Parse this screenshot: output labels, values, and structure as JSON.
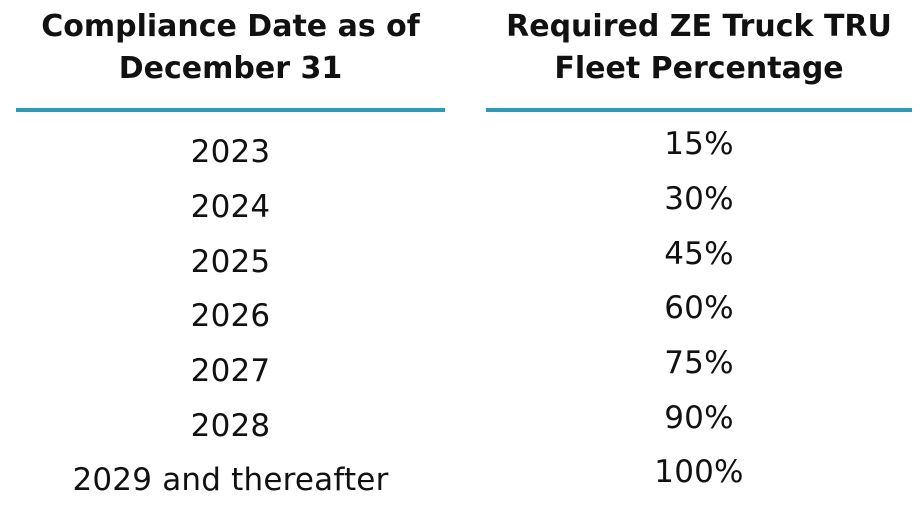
{
  "table": {
    "headers": [
      "Compliance Date as of December 31",
      "Required ZE Truck TRU Fleet Percentage"
    ],
    "rule_color": "#2e9ab8",
    "rows": [
      {
        "date": "2023",
        "percentage": "15%"
      },
      {
        "date": "2024",
        "percentage": "30%"
      },
      {
        "date": "2025",
        "percentage": "45%"
      },
      {
        "date": "2026",
        "percentage": "60%"
      },
      {
        "date": "2027",
        "percentage": "75%"
      },
      {
        "date": "2028",
        "percentage": "90%"
      },
      {
        "date": "2029 and thereafter",
        "percentage": "100%"
      }
    ]
  }
}
